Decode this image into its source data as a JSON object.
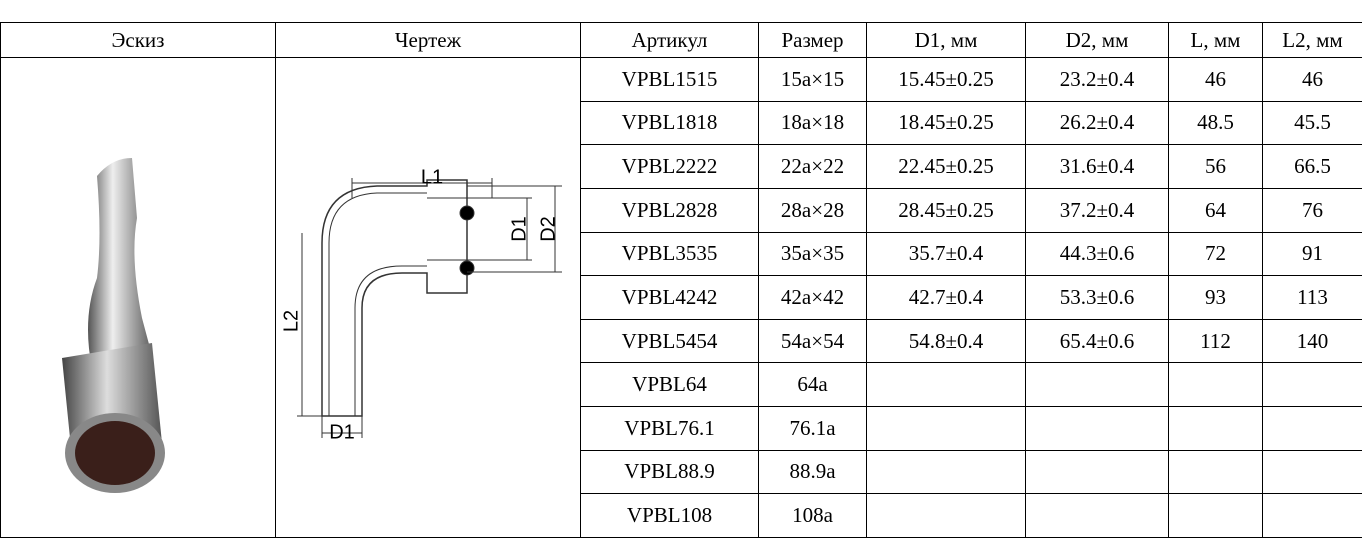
{
  "table": {
    "header": [
      "Эскиз",
      "Чертеж",
      "Артикул",
      "Размер",
      "D1, мм",
      "D2, мм",
      "L, мм",
      "L2, мм"
    ],
    "rows": [
      [
        "VPBL1515",
        "15a×15",
        "15.45±0.25",
        "23.2±0.4",
        "46",
        "46"
      ],
      [
        "VPBL1818",
        "18a×18",
        "18.45±0.25",
        "26.2±0.4",
        "48.5",
        "45.5"
      ],
      [
        "VPBL2222",
        "22a×22",
        "22.45±0.25",
        "31.6±0.4",
        "56",
        "66.5"
      ],
      [
        "VPBL2828",
        "28a×28",
        "28.45±0.25",
        "37.2±0.4",
        "64",
        "76"
      ],
      [
        "VPBL3535",
        "35a×35",
        "35.7±0.4",
        "44.3±0.6",
        "72",
        "91"
      ],
      [
        "VPBL4242",
        "42a×42",
        "42.7±0.4",
        "53.3±0.6",
        "93",
        "113"
      ],
      [
        "VPBL5454",
        "54a×54",
        "54.8±0.4",
        "65.4±0.6",
        "112",
        "140"
      ],
      [
        "VPBL64",
        "64a"
      ],
      [
        "VPBL76.1",
        "76.1a"
      ],
      [
        "VPBL88.9",
        "88.9a"
      ],
      [
        "VPBL108",
        "108a"
      ]
    ]
  },
  "drawing": {
    "labels": [
      "L1",
      "D1",
      "D2",
      "L2",
      "D1"
    ]
  }
}
